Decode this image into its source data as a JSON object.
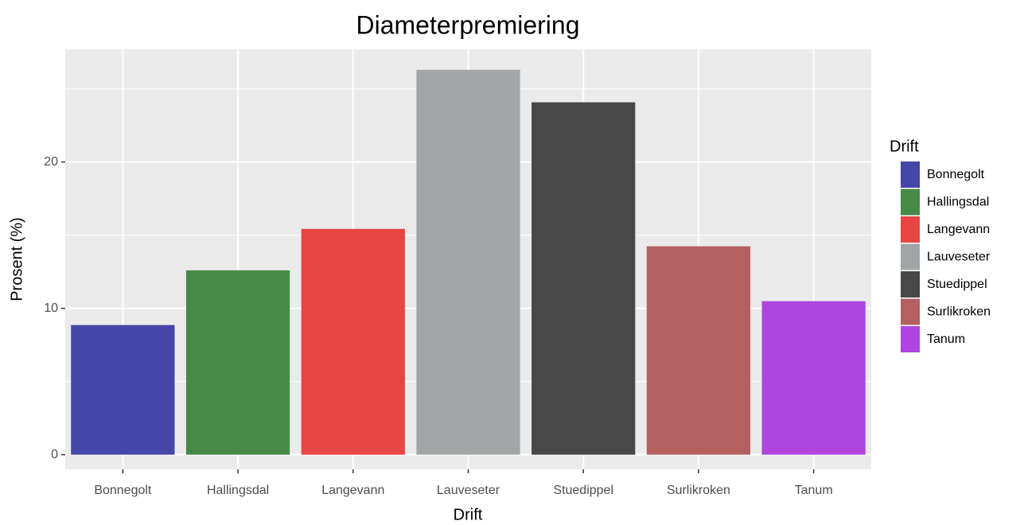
{
  "chart_data": {
    "type": "bar",
    "title": "Diameterpremiering",
    "x_label": "Drift",
    "y_label": "Prosent (%)",
    "legend_title": "Drift",
    "categories": [
      "Bonnegolt",
      "Hallingsdal",
      "Langevann",
      "Lauveseter",
      "Stuedippel",
      "Surlikroken",
      "Tanum"
    ],
    "values": [
      8.86,
      12.6,
      15.43,
      26.3,
      24.08,
      14.24,
      10.49
    ],
    "colors": [
      "#4646a8",
      "#478a47",
      "#e84545",
      "#a1a5a5",
      "#484848",
      "#b56060",
      "#b045e0"
    ],
    "ylim": [
      -1,
      27.7
    ],
    "yticks": [
      0,
      10,
      20
    ],
    "yminor": [
      5,
      15,
      25
    ],
    "grid": true,
    "legend": "right"
  }
}
